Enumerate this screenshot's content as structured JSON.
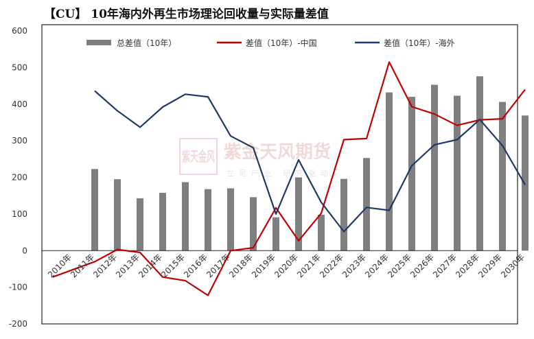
{
  "title": "【CU】 10年海内外再生市场理论回收量与实际量差值",
  "watermark": {
    "name": "紫金天风期货",
    "slogan": "立足产业 研究驱动",
    "logo_text": "紫天金风"
  },
  "colors": {
    "bar": "#7f7f7f",
    "china": "#c00000",
    "overseas": "#1f3864"
  },
  "chart_data": {
    "type": "bar",
    "title": "【CU】 10年海内外再生市场理论回收量与实际量差值",
    "xlabel": "",
    "ylabel": "",
    "ylim": [
      -200,
      600
    ],
    "yticks": [
      -200,
      -100,
      0,
      100,
      200,
      300,
      400,
      500,
      600
    ],
    "grid": false,
    "legend": "top",
    "categories": [
      "2010年",
      "2011年",
      "2012年",
      "2013年",
      "2014年",
      "2015年",
      "2016年",
      "2017年",
      "2018年",
      "2019年",
      "2020年",
      "2021年",
      "2022年",
      "2023年",
      "2024年",
      "2025年",
      "2026年",
      "2027年",
      "2028年",
      "2029年",
      "2030年"
    ],
    "series": [
      {
        "name": "总差值（10年）",
        "type": "bar",
        "values": [
          null,
          223,
          195,
          143,
          158,
          187,
          168,
          170,
          146,
          91,
          200,
          98,
          196,
          253,
          432,
          420,
          453,
          423,
          476,
          406,
          369
        ]
      },
      {
        "name": "差值（10年）-中国",
        "type": "line",
        "values": [
          -72,
          -30,
          3,
          -5,
          -72,
          -82,
          -122,
          0,
          8,
          117,
          27,
          102,
          303,
          306,
          515,
          393,
          373,
          342,
          357,
          360,
          440
        ]
      },
      {
        "name": "差值（10年）-海外",
        "type": "line",
        "values": [
          null,
          436,
          382,
          337,
          392,
          427,
          420,
          313,
          281,
          100,
          248,
          132,
          52,
          118,
          110,
          232,
          289,
          303,
          358,
          287,
          180
        ]
      }
    ]
  }
}
